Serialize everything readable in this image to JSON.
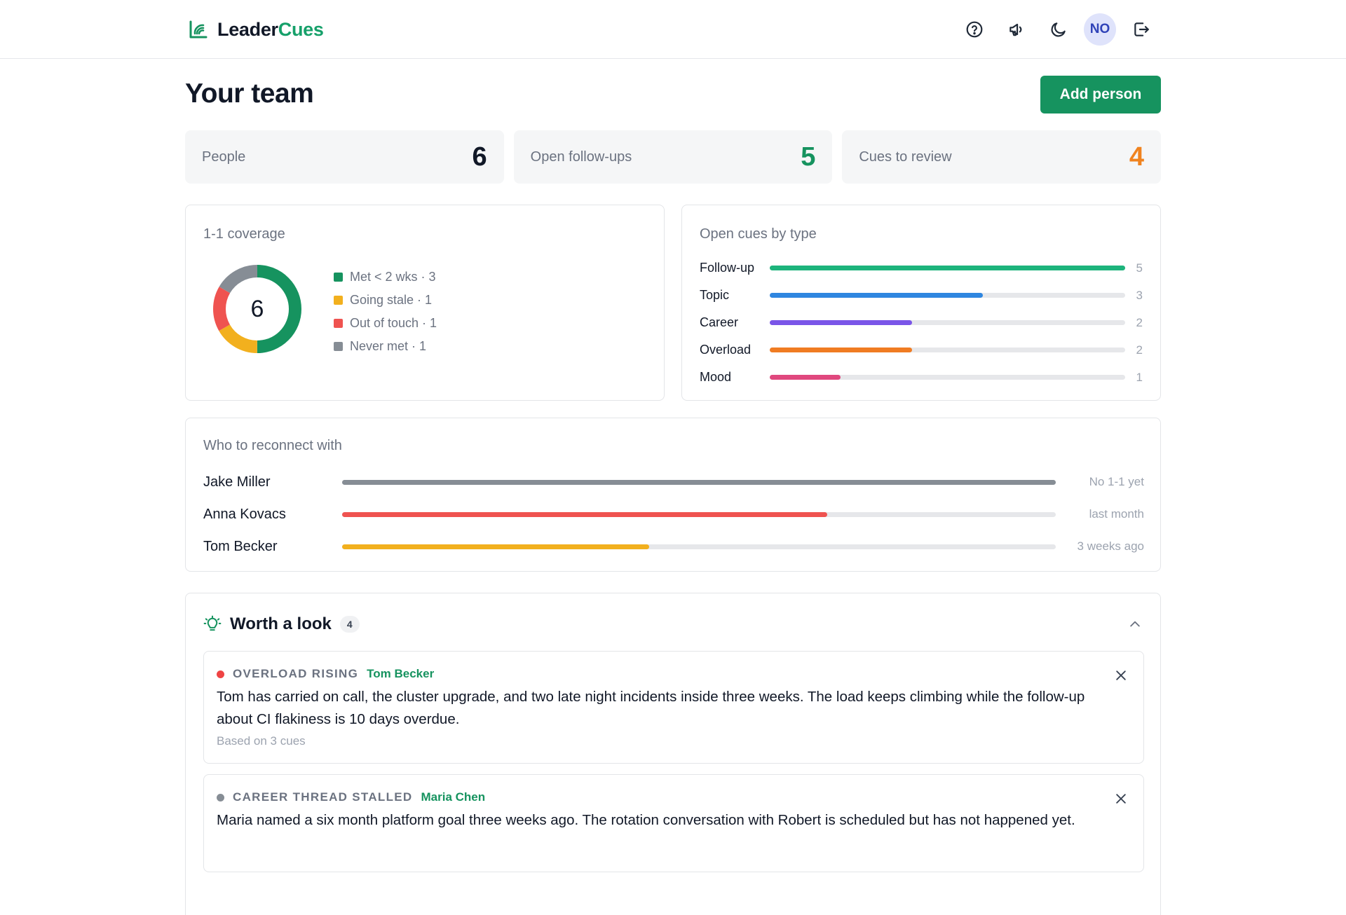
{
  "header": {
    "brand_part1": "Leader",
    "brand_part2": "Cues",
    "brand_color": "#16a06a",
    "avatar_initials": "NO",
    "icons": [
      "help-icon",
      "megaphone-icon",
      "moon-icon",
      "logout-icon"
    ]
  },
  "page": {
    "title": "Your team",
    "add_button": "Add person"
  },
  "stats": [
    {
      "label": "People",
      "value": "6",
      "color": "#111827"
    },
    {
      "label": "Open follow-ups",
      "value": "5",
      "color": "#16935f"
    },
    {
      "label": "Cues to review",
      "value": "4",
      "color": "#f0831f"
    }
  ],
  "coverage": {
    "title": "1-1 coverage",
    "total": "6",
    "legend": [
      {
        "label": "Met < 2 wks · 3",
        "count": 3,
        "color": "#16935f"
      },
      {
        "label": "Going stale · 1",
        "count": 1,
        "color": "#f2b01e"
      },
      {
        "label": "Out of touch · 1",
        "count": 1,
        "color": "#ef5350"
      },
      {
        "label": "Never met · 1",
        "count": 1,
        "color": "#868d95"
      }
    ]
  },
  "cues_by_type": {
    "title": "Open cues by type",
    "max": 5,
    "rows": [
      {
        "label": "Follow-up",
        "count": 5,
        "color": "#1db47c"
      },
      {
        "label": "Topic",
        "count": 3,
        "color": "#2f86e0"
      },
      {
        "label": "Career",
        "count": 2,
        "color": "#7a55e8"
      },
      {
        "label": "Overload",
        "count": 2,
        "color": "#f07c22"
      },
      {
        "label": "Mood",
        "count": 1,
        "color": "#e0487e"
      }
    ]
  },
  "reconnect": {
    "title": "Who to reconnect with",
    "rows": [
      {
        "name": "Jake Miller",
        "note": "No 1-1 yet",
        "level": 1.0,
        "color": "#868d95"
      },
      {
        "name": "Anna Kovacs",
        "note": "last month",
        "level": 0.68,
        "color": "#ef5350"
      },
      {
        "name": "Tom Becker",
        "note": "3 weeks ago",
        "level": 0.43,
        "color": "#f2b01e"
      }
    ]
  },
  "worth": {
    "title": "Worth a look",
    "count": "4",
    "items": [
      {
        "tag": "OVERLOAD RISING",
        "person": "Tom Becker",
        "dot_color": "#ef4444",
        "body": "Tom has carried on call, the cluster upgrade, and two late night incidents inside three weeks. The load keeps climbing while the follow-up about CI flakiness is 10 days overdue.",
        "foot": "Based on 3 cues"
      },
      {
        "tag": "CAREER THREAD STALLED",
        "person": "Maria Chen",
        "dot_color": "#868d95",
        "body": "Maria named a six month platform goal three weeks ago. The rotation conversation with Robert is scheduled but has not happened yet."
      }
    ]
  }
}
